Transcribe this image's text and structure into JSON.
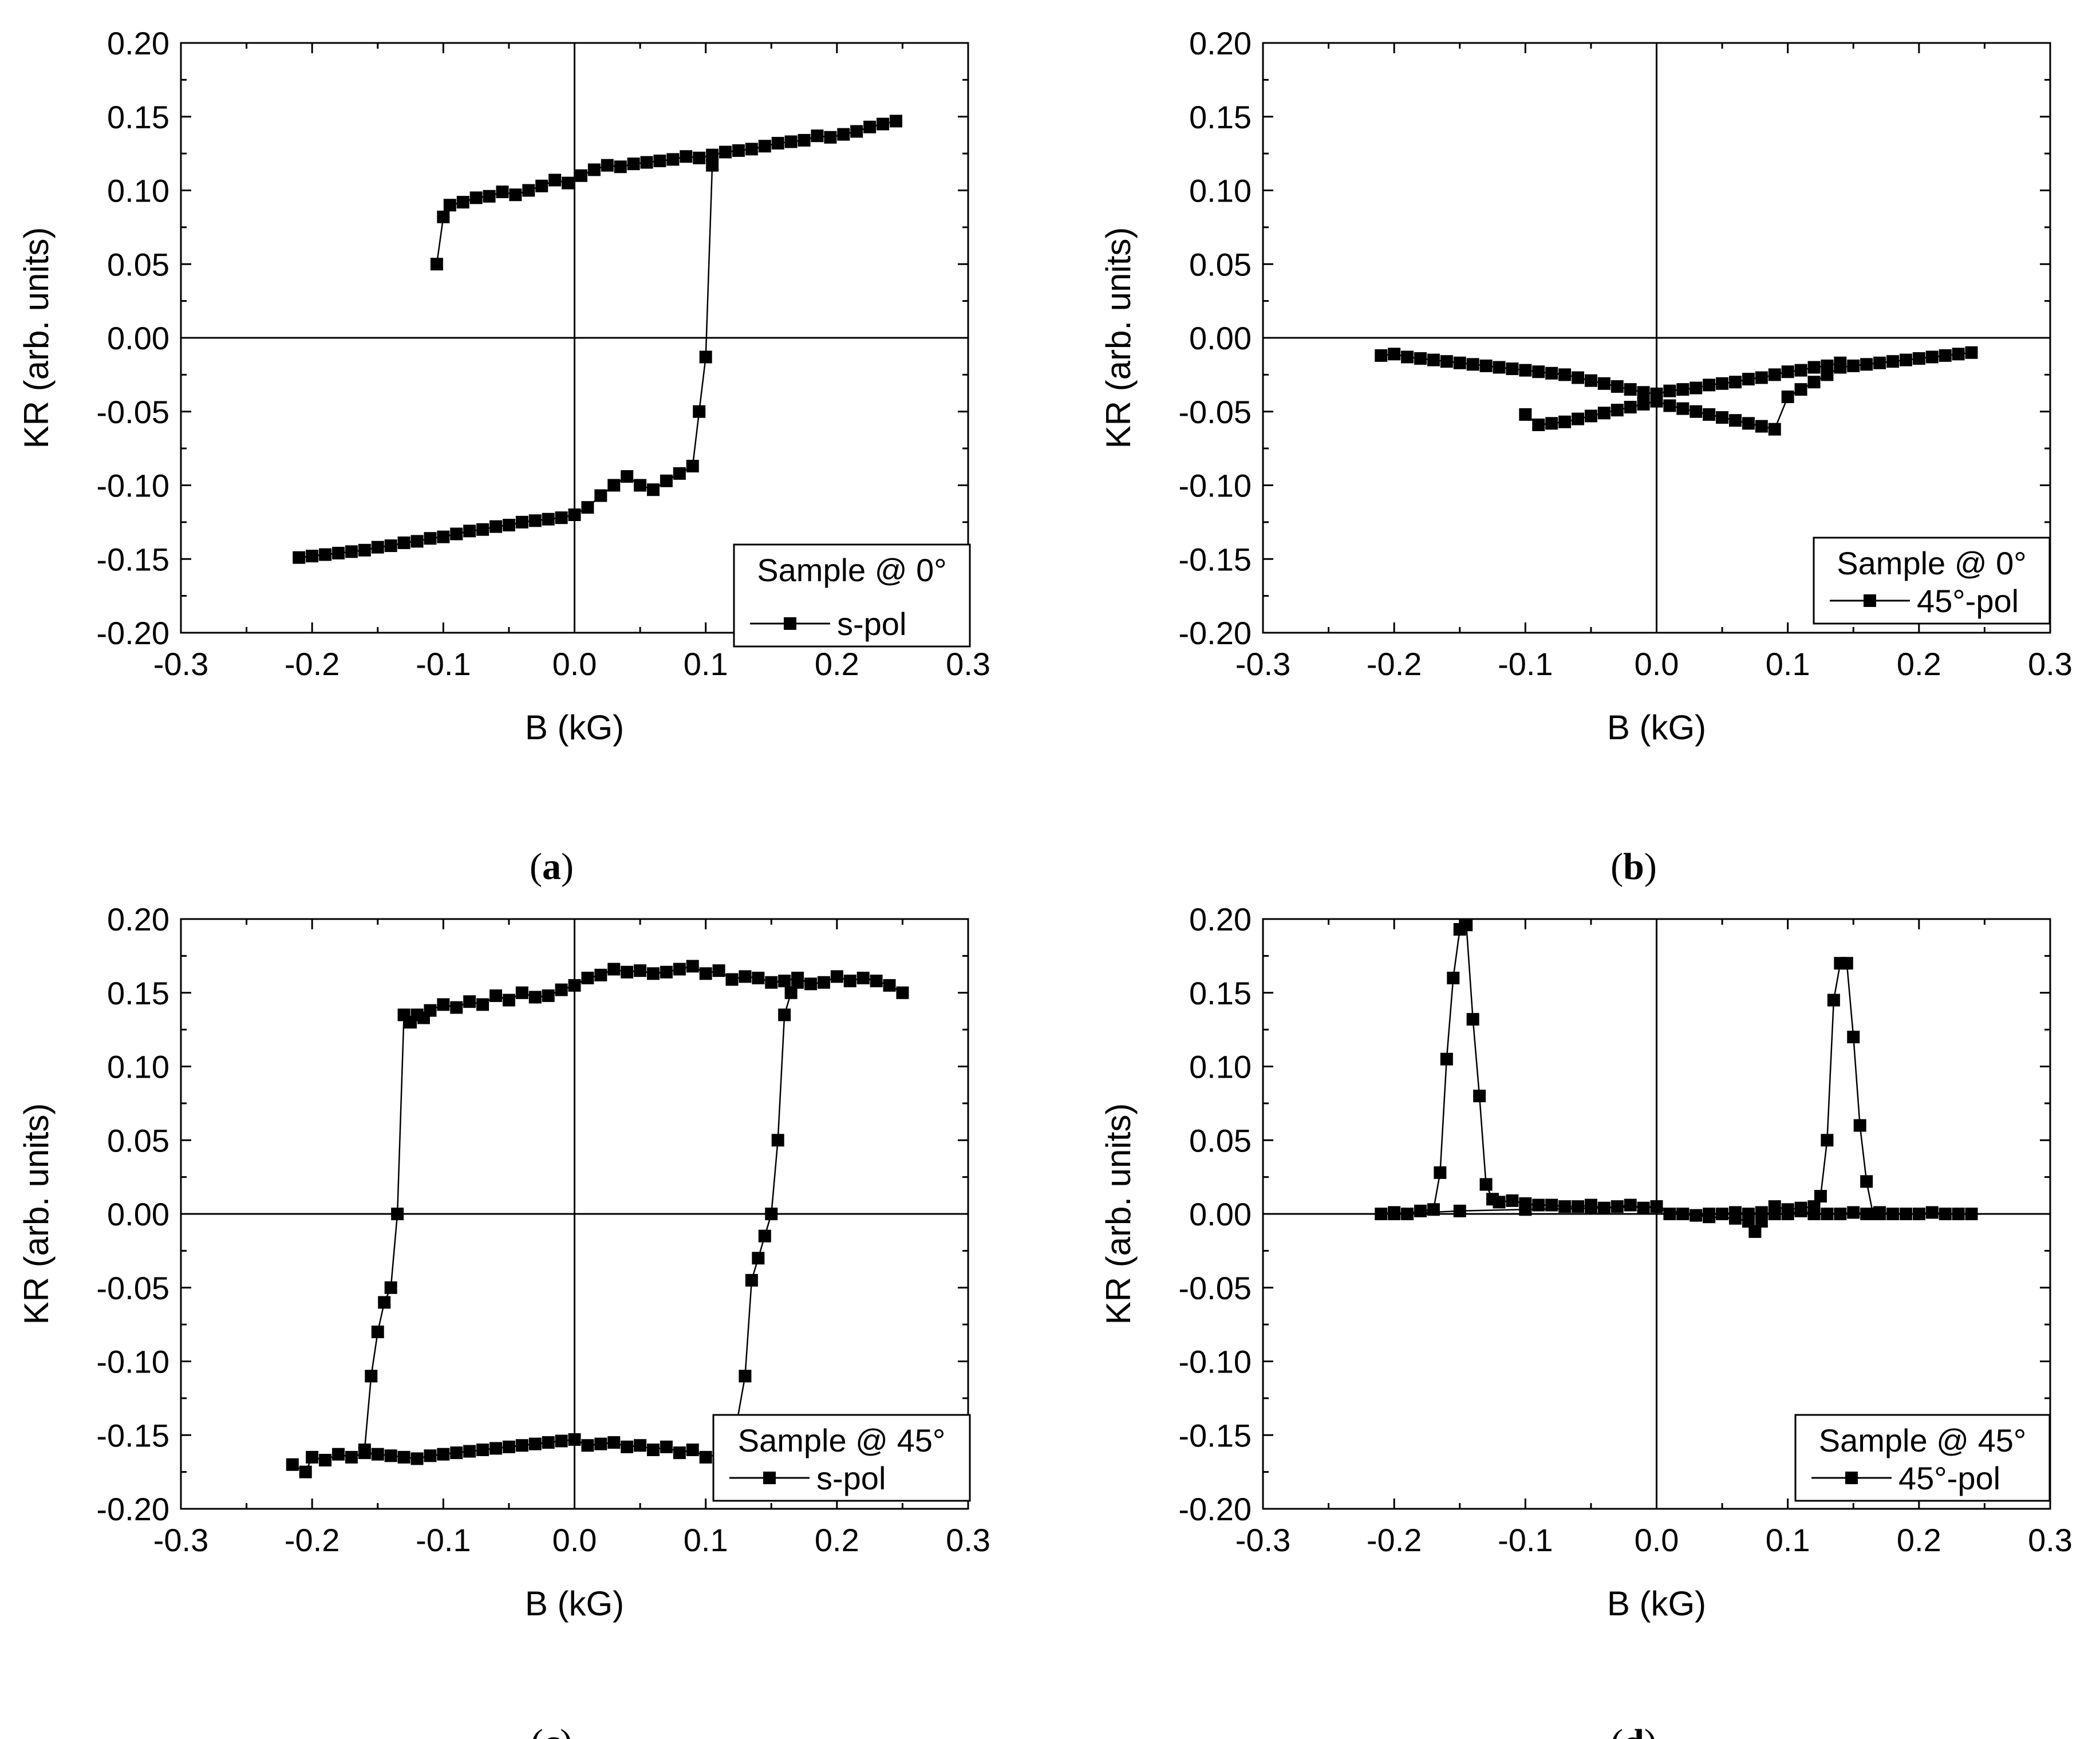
{
  "chart_data": [
    {
      "id": "a",
      "type": "scatter",
      "panel_label": "(a)",
      "panel_letter": "a",
      "xlabel": "B (kG)",
      "ylabel": "KR (arb. units)",
      "xlim": [
        -0.3,
        0.3
      ],
      "ylim": [
        -0.2,
        0.2
      ],
      "xticks": [
        "-0.3",
        "-0.2",
        "-0.1",
        "0.0",
        "0.1",
        "0.2",
        "0.3"
      ],
      "yticks": [
        "-0.20",
        "-0.15",
        "-0.10",
        "-0.05",
        "0.00",
        "0.05",
        "0.10",
        "0.15",
        "0.20"
      ],
      "legend": {
        "title": "Sample @ 0°",
        "entry": "s-pol",
        "position": "bottom-right"
      },
      "series": [
        {
          "name": "s-pol",
          "x": [
            0.245,
            0.235,
            0.225,
            0.215,
            0.205,
            0.195,
            0.185,
            0.175,
            0.165,
            0.155,
            0.145,
            0.135,
            0.125,
            0.115,
            0.105,
            0.095,
            0.085,
            0.075,
            0.065,
            0.055,
            0.045,
            0.035,
            0.025,
            0.015,
            0.005,
            -0.005,
            -0.015,
            -0.025,
            -0.035,
            -0.045,
            -0.055,
            -0.065,
            -0.075,
            -0.085,
            -0.095,
            -0.1,
            -0.105
          ],
          "y": [
            0.147,
            0.145,
            0.143,
            0.14,
            0.138,
            0.136,
            0.137,
            0.134,
            0.133,
            0.132,
            0.13,
            0.128,
            0.127,
            0.126,
            0.124,
            0.122,
            0.123,
            0.121,
            0.12,
            0.119,
            0.118,
            0.116,
            0.117,
            0.114,
            0.11,
            0.105,
            0.107,
            0.103,
            0.1,
            0.097,
            0.099,
            0.096,
            0.095,
            0.092,
            0.09,
            0.082,
            0.05
          ]
        },
        {
          "name": "s-pol",
          "x": [
            -0.21,
            -0.2,
            -0.19,
            -0.18,
            -0.17,
            -0.16,
            -0.15,
            -0.14,
            -0.13,
            -0.12,
            -0.11,
            -0.1,
            -0.09,
            -0.08,
            -0.07,
            -0.06,
            -0.05,
            -0.04,
            -0.03,
            -0.02,
            -0.01,
            0.0,
            0.01,
            0.02,
            0.03,
            0.04,
            0.05,
            0.06,
            0.07,
            0.08,
            0.09,
            0.095,
            0.1,
            0.105
          ],
          "y": [
            -0.149,
            -0.148,
            -0.147,
            -0.146,
            -0.145,
            -0.144,
            -0.142,
            -0.141,
            -0.139,
            -0.138,
            -0.136,
            -0.135,
            -0.133,
            -0.131,
            -0.13,
            -0.128,
            -0.127,
            -0.125,
            -0.124,
            -0.123,
            -0.122,
            -0.12,
            -0.115,
            -0.107,
            -0.1,
            -0.094,
            -0.1,
            -0.103,
            -0.097,
            -0.092,
            -0.087,
            -0.05,
            -0.013,
            0.117
          ]
        }
      ]
    },
    {
      "id": "b",
      "type": "scatter",
      "panel_label": "(b)",
      "panel_letter": "b",
      "xlabel": "B (kG)",
      "ylabel": "KR (arb. units)",
      "xlim": [
        -0.3,
        0.3
      ],
      "ylim": [
        -0.2,
        0.2
      ],
      "xticks": [
        "-0.3",
        "-0.2",
        "-0.1",
        "0.0",
        "0.1",
        "0.2",
        "0.3"
      ],
      "yticks": [
        "-0.20",
        "-0.15",
        "-0.10",
        "-0.05",
        "0.00",
        "0.05",
        "0.10",
        "0.15",
        "0.20"
      ],
      "legend": {
        "title": "Sample @ 0°",
        "entry": "45°-pol",
        "position": "bottom-right"
      },
      "series": [
        {
          "name": "45°-pol",
          "x": [
            0.24,
            0.23,
            0.22,
            0.21,
            0.2,
            0.19,
            0.18,
            0.17,
            0.16,
            0.15,
            0.14,
            0.13,
            0.12,
            0.11,
            0.1,
            0.09,
            0.08,
            0.07,
            0.06,
            0.05,
            0.04,
            0.03,
            0.02,
            0.01,
            0.0,
            -0.01,
            -0.02,
            -0.03,
            -0.04,
            -0.05,
            -0.06,
            -0.07,
            -0.08,
            -0.09,
            -0.1
          ],
          "y": [
            -0.01,
            -0.011,
            -0.012,
            -0.013,
            -0.014,
            -0.015,
            -0.016,
            -0.017,
            -0.018,
            -0.019,
            -0.02,
            -0.025,
            -0.03,
            -0.035,
            -0.04,
            -0.062,
            -0.06,
            -0.058,
            -0.056,
            -0.054,
            -0.052,
            -0.05,
            -0.048,
            -0.046,
            -0.043,
            -0.045,
            -0.047,
            -0.049,
            -0.051,
            -0.053,
            -0.055,
            -0.057,
            -0.058,
            -0.059,
            -0.052
          ]
        },
        {
          "name": "45°-pol",
          "x": [
            -0.21,
            -0.2,
            -0.19,
            -0.18,
            -0.17,
            -0.16,
            -0.15,
            -0.14,
            -0.13,
            -0.12,
            -0.11,
            -0.1,
            -0.09,
            -0.08,
            -0.07,
            -0.06,
            -0.05,
            -0.04,
            -0.03,
            -0.02,
            -0.01,
            0.0,
            0.01,
            0.02,
            0.03,
            0.04,
            0.05,
            0.06,
            0.07,
            0.08,
            0.09,
            0.1,
            0.11,
            0.12,
            0.13,
            0.14
          ],
          "y": [
            -0.012,
            -0.011,
            -0.013,
            -0.014,
            -0.015,
            -0.016,
            -0.017,
            -0.018,
            -0.019,
            -0.02,
            -0.021,
            -0.022,
            -0.023,
            -0.024,
            -0.025,
            -0.027,
            -0.029,
            -0.031,
            -0.033,
            -0.035,
            -0.037,
            -0.038,
            -0.036,
            -0.035,
            -0.034,
            -0.032,
            -0.031,
            -0.03,
            -0.028,
            -0.027,
            -0.025,
            -0.023,
            -0.022,
            -0.02,
            -0.019,
            -0.017
          ]
        }
      ]
    },
    {
      "id": "c",
      "type": "scatter",
      "panel_label": "(c)",
      "panel_letter": "c",
      "xlabel": "B (kG)",
      "ylabel": "KR (arb. units)",
      "xlim": [
        -0.3,
        0.3
      ],
      "ylim": [
        -0.2,
        0.2
      ],
      "xticks": [
        "-0.3",
        "-0.2",
        "-0.1",
        "0.0",
        "0.1",
        "0.2",
        "0.3"
      ],
      "yticks": [
        "-0.20",
        "-0.15",
        "-0.10",
        "-0.05",
        "0.00",
        "0.05",
        "0.10",
        "0.15",
        "0.20"
      ],
      "legend": {
        "title": "Sample @ 45°",
        "entry": "s-pol",
        "position": "bottom-right"
      },
      "series": [
        {
          "name": "s-pol",
          "x": [
            0.25,
            0.24,
            0.23,
            0.22,
            0.21,
            0.2,
            0.19,
            0.18,
            0.17,
            0.16,
            0.15,
            0.14,
            0.13,
            0.12,
            0.11,
            0.1,
            0.09,
            0.08,
            0.07,
            0.06,
            0.05,
            0.04,
            0.03,
            0.02,
            0.01,
            0.0,
            -0.01,
            -0.02,
            -0.03,
            -0.04,
            -0.05,
            -0.06,
            -0.07,
            -0.08,
            -0.09,
            -0.1,
            -0.11,
            -0.115,
            -0.12,
            -0.125,
            -0.13,
            -0.135,
            -0.14,
            -0.145,
            -0.15,
            -0.155,
            -0.16
          ],
          "y": [
            0.15,
            0.155,
            0.158,
            0.16,
            0.158,
            0.161,
            0.157,
            0.156,
            0.16,
            0.158,
            0.157,
            0.16,
            0.161,
            0.159,
            0.165,
            0.163,
            0.168,
            0.166,
            0.164,
            0.163,
            0.165,
            0.164,
            0.166,
            0.162,
            0.16,
            0.155,
            0.152,
            0.148,
            0.147,
            0.15,
            0.145,
            0.148,
            0.142,
            0.144,
            0.14,
            0.142,
            0.138,
            0.133,
            0.135,
            0.13,
            0.135,
            0.0,
            -0.05,
            -0.06,
            -0.08,
            -0.11,
            -0.16
          ]
        },
        {
          "name": "s-pol",
          "x": [
            -0.215,
            -0.205,
            -0.2,
            -0.19,
            -0.18,
            -0.17,
            -0.16,
            -0.15,
            -0.14,
            -0.13,
            -0.12,
            -0.11,
            -0.1,
            -0.09,
            -0.08,
            -0.07,
            -0.06,
            -0.05,
            -0.04,
            -0.03,
            -0.02,
            -0.01,
            0.0,
            0.01,
            0.02,
            0.03,
            0.04,
            0.05,
            0.06,
            0.07,
            0.08,
            0.09,
            0.1,
            0.11,
            0.12,
            0.13,
            0.135,
            0.14,
            0.145,
            0.15,
            0.155,
            0.16,
            0.165,
            0.17
          ],
          "y": [
            -0.17,
            -0.175,
            -0.165,
            -0.167,
            -0.163,
            -0.165,
            -0.162,
            -0.163,
            -0.164,
            -0.165,
            -0.166,
            -0.164,
            -0.163,
            -0.162,
            -0.161,
            -0.16,
            -0.159,
            -0.158,
            -0.157,
            -0.156,
            -0.155,
            -0.154,
            -0.153,
            -0.157,
            -0.156,
            -0.155,
            -0.158,
            -0.157,
            -0.16,
            -0.158,
            -0.162,
            -0.16,
            -0.165,
            -0.163,
            -0.16,
            -0.11,
            -0.045,
            -0.03,
            -0.015,
            0.0,
            0.05,
            0.135,
            0.15,
            0.157
          ]
        }
      ]
    },
    {
      "id": "d",
      "type": "scatter",
      "panel_label": "(d)",
      "panel_letter": "d",
      "xlabel": "B (kG)",
      "ylabel": "KR (arb. units)",
      "xlim": [
        -0.3,
        0.3
      ],
      "ylim": [
        -0.2,
        0.2
      ],
      "xticks": [
        "-0.3",
        "-0.2",
        "-0.1",
        "0.0",
        "0.1",
        "0.2",
        "0.3"
      ],
      "yticks": [
        "-0.20",
        "-0.15",
        "-0.10",
        "-0.05",
        "0.00",
        "0.05",
        "0.10",
        "0.15",
        "0.20"
      ],
      "legend": {
        "title": "Sample @ 45°",
        "entry": "45°-pol",
        "position": "bottom-right"
      },
      "series": [
        {
          "name": "45°-pol",
          "x": [
            -0.21,
            -0.2,
            -0.19,
            -0.18,
            -0.17,
            -0.165,
            -0.16,
            -0.155,
            -0.15,
            -0.145,
            -0.14,
            -0.135,
            -0.13,
            -0.125,
            -0.12,
            -0.11,
            -0.1,
            -0.09,
            -0.08,
            -0.07,
            -0.06,
            -0.05,
            -0.04,
            -0.03,
            -0.02,
            -0.01,
            0.0,
            0.01,
            0.02,
            0.03,
            0.04,
            0.05,
            0.06,
            0.07,
            0.08,
            0.09,
            0.1,
            0.11,
            0.12,
            0.13,
            0.14,
            0.15,
            0.16,
            0.17,
            0.18,
            0.19,
            0.2,
            0.21,
            0.22,
            0.23,
            0.24
          ],
          "y": [
            0.0,
            0.001,
            0.0,
            0.002,
            0.003,
            0.028,
            0.105,
            0.16,
            0.193,
            0.196,
            0.132,
            0.08,
            0.02,
            0.01,
            0.008,
            0.009,
            0.007,
            0.006,
            0.006,
            0.005,
            0.005,
            0.006,
            0.004,
            0.005,
            0.006,
            0.004,
            0.005,
            0.0,
            0.0,
            -0.001,
            0.0,
            0.0,
            0.001,
            0.0,
            0.001,
            0.0,
            0.0,
            0.002,
            0.0,
            0.0,
            0.0,
            0.001,
            0.0,
            0.001,
            0.0,
            0.0,
            0.0,
            0.001,
            0.0,
            0.0,
            0.0
          ]
        },
        {
          "name": "45°-pol",
          "x": [
            -0.2,
            -0.15,
            -0.1,
            -0.05,
            0.0,
            0.02,
            0.04,
            0.06,
            0.07,
            0.075,
            0.08,
            0.09,
            0.1,
            0.11,
            0.12,
            0.125,
            0.13,
            0.135,
            0.14,
            0.145,
            0.15,
            0.155,
            0.16,
            0.165,
            0.17
          ],
          "y": [
            0.0,
            0.002,
            0.003,
            0.004,
            0.005,
            0.0,
            -0.002,
            -0.003,
            -0.005,
            -0.012,
            -0.005,
            0.005,
            0.003,
            0.004,
            0.005,
            0.012,
            0.05,
            0.145,
            0.17,
            0.17,
            0.12,
            0.06,
            0.022,
            0.0,
            0.0
          ]
        }
      ]
    }
  ]
}
